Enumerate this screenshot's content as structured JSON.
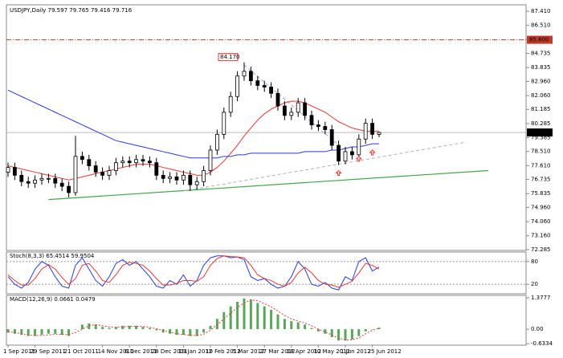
{
  "chart_data": [
    {
      "type": "candlestick",
      "title": "USDJPY,Daily  79.597 79.765 79.416 79.716",
      "categories": [
        "1 Sep 2011",
        null,
        null,
        null,
        "29 Sep 2011",
        null,
        null,
        null,
        null,
        "21 Oct 2011",
        null,
        null,
        null,
        null,
        "14 Nov 2011",
        null,
        null,
        null,
        "6 Dec 2011",
        null,
        null,
        null,
        "28 Dec 2011",
        null,
        null,
        null,
        "19 Jan 2012",
        null,
        null,
        null,
        "10 Feb 2012",
        null,
        null,
        null,
        "5 Mar 2012",
        null,
        null,
        null,
        "27 Mar 2012",
        null,
        null,
        null,
        "18 Apr 2012",
        null,
        null,
        null,
        "10 May 2012",
        null,
        null,
        null,
        "1 Jun 2012",
        null,
        null,
        null,
        "25 Jun 2012",
        null
      ],
      "open": [
        77.2,
        77.5,
        77.0,
        76.6,
        76.5,
        76.7,
        76.8,
        76.8,
        76.5,
        76.3,
        75.9,
        78.2,
        78.0,
        77.6,
        77.2,
        77.0,
        77.3,
        77.8,
        77.9,
        77.8,
        78.0,
        77.9,
        77.8,
        77.0,
        76.8,
        76.9,
        76.7,
        77.0,
        76.4,
        76.6,
        77.3,
        78.6,
        79.6,
        81.0,
        82.0,
        83.3,
        83.6,
        83.0,
        82.7,
        82.6,
        82.2,
        81.4,
        80.8,
        81.0,
        81.6,
        80.8,
        80.2,
        80.1,
        79.9,
        78.9,
        77.9,
        78.5,
        78.3,
        79.3,
        80.3,
        79.597
      ],
      "high": [
        77.8,
        77.8,
        77.3,
        76.9,
        77.0,
        77.1,
        77.1,
        77.1,
        76.8,
        76.6,
        79.5,
        78.5,
        78.3,
        77.9,
        77.5,
        77.6,
        78.1,
        78.2,
        78.2,
        78.3,
        78.3,
        78.2,
        78.1,
        77.3,
        77.2,
        77.2,
        77.3,
        77.3,
        76.9,
        77.6,
        78.9,
        79.9,
        81.3,
        82.3,
        83.6,
        84.17,
        83.9,
        83.3,
        83.0,
        82.9,
        82.5,
        81.7,
        81.3,
        81.9,
        81.9,
        81.1,
        80.5,
        80.4,
        80.2,
        79.2,
        78.8,
        78.8,
        79.6,
        80.6,
        80.6,
        79.765
      ],
      "low": [
        76.9,
        76.7,
        76.3,
        76.2,
        76.2,
        76.4,
        76.5,
        76.2,
        76.0,
        75.6,
        75.7,
        77.7,
        77.3,
        76.9,
        76.7,
        76.7,
        77.0,
        77.5,
        77.5,
        77.5,
        77.6,
        77.5,
        76.7,
        76.5,
        76.5,
        76.4,
        76.4,
        76.0,
        76.1,
        76.3,
        77.0,
        78.3,
        79.3,
        80.7,
        81.7,
        83.0,
        82.7,
        82.4,
        82.3,
        81.9,
        81.1,
        80.5,
        80.5,
        80.7,
        80.5,
        79.9,
        79.8,
        79.6,
        78.6,
        77.65,
        77.7,
        78.0,
        78.0,
        79.0,
        79.3,
        79.416
      ],
      "close": [
        77.5,
        77.0,
        76.6,
        76.5,
        76.7,
        76.8,
        76.8,
        76.5,
        76.3,
        75.9,
        78.2,
        78.0,
        77.6,
        77.2,
        77.0,
        77.3,
        77.8,
        77.9,
        77.8,
        78.0,
        77.9,
        77.8,
        77.0,
        76.8,
        76.9,
        76.7,
        77.0,
        76.4,
        76.6,
        77.3,
        78.6,
        79.6,
        81.0,
        82.0,
        83.3,
        83.6,
        83.0,
        82.7,
        82.6,
        82.2,
        81.4,
        80.8,
        81.0,
        81.6,
        80.8,
        80.2,
        80.1,
        79.9,
        78.9,
        77.9,
        78.5,
        78.3,
        79.3,
        80.3,
        79.6,
        79.716
      ],
      "overlays": [
        {
          "color": "#e53935",
          "values": [
            77.6,
            77.5,
            77.4,
            77.3,
            77.2,
            77.1,
            77.0,
            76.9,
            76.8,
            76.7,
            76.8,
            76.9,
            77.0,
            77.1,
            77.2,
            77.3,
            77.4,
            77.5,
            77.6,
            77.7,
            77.7,
            77.7,
            77.6,
            77.5,
            77.4,
            77.3,
            77.2,
            77.1,
            77.0,
            77.0,
            77.2,
            77.5,
            77.9,
            78.4,
            78.9,
            79.5,
            80.0,
            80.5,
            80.9,
            81.2,
            81.4,
            81.6,
            81.7,
            81.7,
            81.6,
            81.4,
            81.2,
            81.0,
            80.7,
            80.4,
            80.2,
            80.0,
            79.9,
            79.8,
            79.8,
            79.8
          ]
        },
        {
          "color": "#2a3ad8",
          "values": [
            82.4,
            82.2,
            82.0,
            81.8,
            81.6,
            81.4,
            81.2,
            81.0,
            80.8,
            80.6,
            80.4,
            80.2,
            80.0,
            79.8,
            79.6,
            79.4,
            79.2,
            79.1,
            79.0,
            78.9,
            78.8,
            78.7,
            78.6,
            78.5,
            78.4,
            78.3,
            78.2,
            78.1,
            78.1,
            78.1,
            78.1,
            78.1,
            78.2,
            78.2,
            78.3,
            78.3,
            78.4,
            78.4,
            78.4,
            78.4,
            78.4,
            78.4,
            78.4,
            78.4,
            78.5,
            78.5,
            78.5,
            78.5,
            78.6,
            78.6,
            78.7,
            78.8,
            78.8,
            78.9,
            79.0,
            79.0
          ]
        }
      ],
      "trendlines": [
        {
          "color": "#3fa64a",
          "dash": false,
          "x": [
            6,
            71.2
          ],
          "y": [
            75.46,
            77.3
          ]
        },
        {
          "color": "#b0b0b0",
          "dash": true,
          "x": [
            26,
            67.8
          ],
          "y": [
            76.0,
            79.1
          ]
        },
        {
          "color": "#9aa7d8",
          "dash": true,
          "x": [
            35,
            48.8
          ],
          "y": [
            84.0,
            79.0
          ]
        }
      ],
      "hline": {
        "value": 85.6,
        "label": "85.600",
        "color": "#c0392b"
      },
      "last_price": {
        "value": 79.716,
        "label": "79.716"
      },
      "annotation": {
        "x": 35,
        "value": 84.17,
        "label": "84.170",
        "color": "#e53935"
      },
      "arrows": {
        "color": "#e53935",
        "x": [
          49,
          52,
          54
        ],
        "y": [
          77.3,
          78.2,
          78.6
        ]
      },
      "ylim": [
        72.23,
        87.82
      ],
      "yticks": [
        {
          "value": 87.41,
          "label": "87.410"
        },
        {
          "value": 86.51,
          "label": "86.510"
        },
        {
          "value": 84.735,
          "label": "84.735"
        },
        {
          "value": 83.835,
          "label": "83.835"
        },
        {
          "value": 82.96,
          "label": "82.960"
        },
        {
          "value": 82.06,
          "label": "82.060"
        },
        {
          "value": 81.185,
          "label": "81.185"
        },
        {
          "value": 80.285,
          "label": "80.285"
        },
        {
          "value": 79.385,
          "label": "79.385"
        },
        {
          "value": 78.51,
          "label": "78.510"
        },
        {
          "value": 77.61,
          "label": "77.610"
        },
        {
          "value": 76.735,
          "label": "76.735"
        },
        {
          "value": 75.835,
          "label": "75.835"
        },
        {
          "value": 74.96,
          "label": "74.960"
        },
        {
          "value": 74.06,
          "label": "74.060"
        },
        {
          "value": 73.16,
          "label": "73.160"
        },
        {
          "value": 72.285,
          "label": "72.285"
        }
      ]
    },
    {
      "type": "line",
      "title": "Stoch(8,3,3) 65.4514 59.9504",
      "series": [
        {
          "color": "#2a3ad8",
          "values": [
            40,
            20,
            10,
            25,
            60,
            80,
            70,
            40,
            15,
            10,
            70,
            90,
            60,
            30,
            15,
            40,
            75,
            85,
            70,
            80,
            60,
            40,
            15,
            10,
            30,
            20,
            45,
            15,
            30,
            70,
            90,
            95,
            95,
            90,
            92,
            85,
            40,
            30,
            35,
            20,
            10,
            15,
            40,
            80,
            60,
            20,
            15,
            25,
            10,
            5,
            40,
            30,
            80,
            90,
            55,
            65.4514
          ]
        },
        {
          "color": "#e53935",
          "values": [
            45,
            30,
            18,
            18,
            35,
            60,
            72,
            60,
            38,
            20,
            35,
            70,
            75,
            55,
            30,
            25,
            45,
            70,
            78,
            75,
            70,
            55,
            35,
            18,
            18,
            22,
            30,
            30,
            28,
            40,
            70,
            88,
            95,
            93,
            92,
            90,
            70,
            45,
            35,
            30,
            20,
            15,
            25,
            50,
            65,
            50,
            30,
            20,
            18,
            12,
            20,
            28,
            50,
            75,
            70,
            59.9504
          ]
        }
      ],
      "ylim": [
        -5,
        105
      ],
      "yticks": [
        80,
        20
      ]
    },
    {
      "type": "macd",
      "title": "MACD(12,26,9) 0.0661 0.0479",
      "series": [
        {
          "color": "#5aa55a",
          "values": [
            -0.15,
            -0.2,
            -0.25,
            -0.3,
            -0.3,
            -0.25,
            -0.2,
            -0.2,
            -0.25,
            -0.3,
            0.0,
            0.2,
            0.25,
            0.2,
            0.1,
            0.05,
            0.1,
            0.15,
            0.15,
            0.15,
            0.1,
            0.05,
            -0.05,
            -0.15,
            -0.2,
            -0.25,
            -0.25,
            -0.3,
            -0.3,
            -0.15,
            0.15,
            0.45,
            0.75,
            1.0,
            1.2,
            1.35,
            1.3,
            1.15,
            1.0,
            0.85,
            0.65,
            0.45,
            0.35,
            0.3,
            0.2,
            0.05,
            -0.1,
            -0.2,
            -0.35,
            -0.5,
            -0.5,
            -0.45,
            -0.3,
            -0.1,
            0.0,
            0.0661
          ]
        },
        {
          "color": "#e53935",
          "values": [
            -0.1,
            -0.15,
            -0.2,
            -0.25,
            -0.28,
            -0.28,
            -0.25,
            -0.22,
            -0.22,
            -0.25,
            -0.15,
            0.0,
            0.15,
            0.2,
            0.15,
            0.1,
            0.08,
            0.1,
            0.12,
            0.13,
            0.12,
            0.08,
            0.02,
            -0.06,
            -0.13,
            -0.2,
            -0.23,
            -0.27,
            -0.28,
            -0.22,
            -0.05,
            0.2,
            0.45,
            0.7,
            0.95,
            1.15,
            1.28,
            1.25,
            1.12,
            0.98,
            0.8,
            0.6,
            0.45,
            0.35,
            0.27,
            0.15,
            0.0,
            -0.12,
            -0.25,
            -0.4,
            -0.47,
            -0.47,
            -0.38,
            -0.2,
            -0.05,
            0.0479
          ]
        }
      ],
      "ylim": [
        -0.7,
        1.48
      ],
      "yticks": [
        1.3777,
        {
          "value": 0,
          "label": "0.00"
        },
        -0.6334
      ]
    }
  ]
}
